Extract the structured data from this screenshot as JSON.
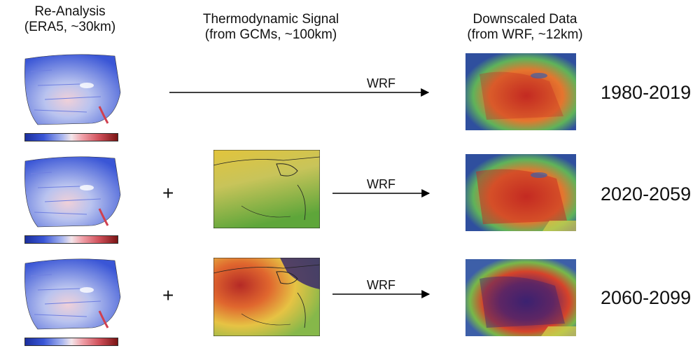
{
  "headers": {
    "reanalysis": {
      "line1": "Re-Analysis",
      "line2": "(ERA5, ~30km)"
    },
    "thermodynamic": {
      "line1": "Thermodynamic Signal",
      "line2": "(from GCMs, ~100km)"
    },
    "downscaled": {
      "line1": "Downscaled Data",
      "line2": "(from WRF, ~12km)"
    }
  },
  "rows": [
    {
      "period": "1980-2019",
      "plus": "",
      "arrow_label": "WRF",
      "gcm": false
    },
    {
      "period": "2020-2059",
      "plus": "+",
      "arrow_label": "WRF",
      "gcm": true
    },
    {
      "period": "2060-2099",
      "plus": "+",
      "arrow_label": "WRF",
      "gcm": true
    }
  ],
  "colors": {
    "era_low": "#3a56d6",
    "era_high": "#d0505a",
    "gcm_mid_yellow": "#e3c94a",
    "gcm_green": "#6fae3e",
    "gcm_hot": "#c8362a",
    "gcm_purple": "#3a2a6b",
    "wrf_red": "#d7422a",
    "wrf_purple": "#3b2270",
    "wrf_green": "#5fb35a",
    "wrf_blue": "#3d5fa8"
  }
}
